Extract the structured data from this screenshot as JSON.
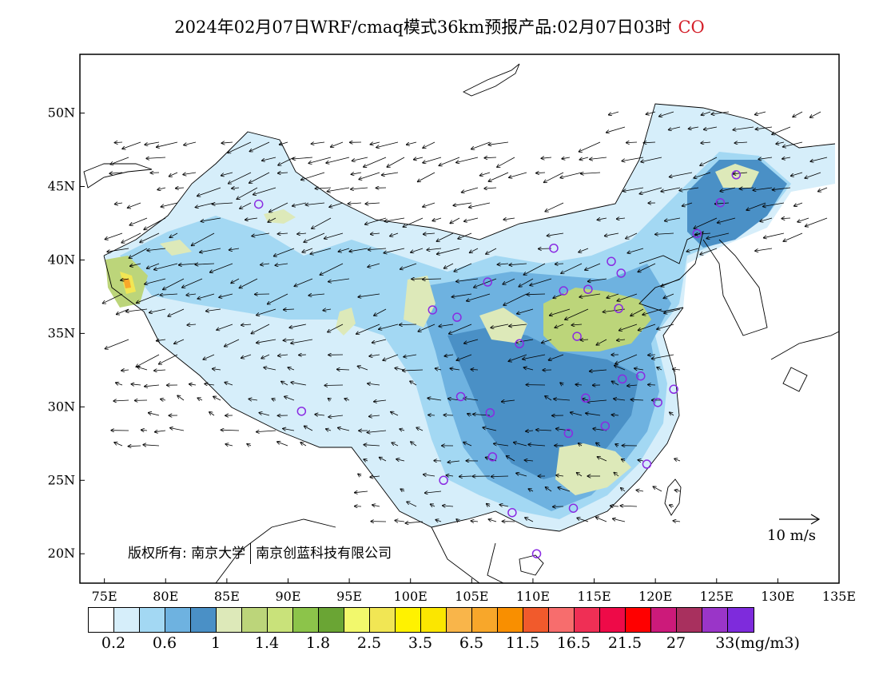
{
  "header": {
    "title": "2024年02月07日WRF/cmaq模式36km预报产品:02月07日03时",
    "species": "CO"
  },
  "map": {
    "lon_labels": [
      "75E",
      "80E",
      "85E",
      "90E",
      "95E",
      "100E",
      "105E",
      "110E",
      "115E",
      "120E",
      "125E",
      "130E",
      "135E"
    ],
    "lat_labels": [
      "20N",
      "25N",
      "30N",
      "35N",
      "40N",
      "45N",
      "50N"
    ],
    "lon_range": [
      73,
      135
    ],
    "lat_range": [
      18,
      54
    ],
    "concentration_colors": [
      "#ffffff",
      "#d6eefa",
      "#a3d8f3",
      "#6eb2e0",
      "#4a90c6",
      "#dde9b9",
      "#bcd57a",
      "#c9e27a",
      "#8cc44a",
      "#6aa534",
      "#f2f86c",
      "#f1e654",
      "#fff200",
      "#fbe600",
      "#f9b54a",
      "#f8a72a",
      "#f98f00",
      "#f15a2c",
      "#f76d6d",
      "#ef2f55",
      "#ee0a48",
      "#ff0000",
      "#cc1a7a",
      "#a8305e",
      "#9a35c8",
      "#7e2bdc"
    ],
    "station_color": "#8a2be2",
    "stations": [
      {
        "lon": 87.6,
        "lat": 43.8
      },
      {
        "lon": 91.1,
        "lat": 29.7
      },
      {
        "lon": 101.8,
        "lat": 36.6
      },
      {
        "lon": 103.8,
        "lat": 36.1
      },
      {
        "lon": 106.3,
        "lat": 38.5
      },
      {
        "lon": 111.7,
        "lat": 40.8
      },
      {
        "lon": 112.5,
        "lat": 37.9
      },
      {
        "lon": 114.5,
        "lat": 38.0
      },
      {
        "lon": 116.4,
        "lat": 39.9
      },
      {
        "lon": 117.2,
        "lat": 39.1
      },
      {
        "lon": 117.0,
        "lat": 36.7
      },
      {
        "lon": 113.6,
        "lat": 34.8
      },
      {
        "lon": 108.9,
        "lat": 34.3
      },
      {
        "lon": 104.1,
        "lat": 30.7
      },
      {
        "lon": 106.5,
        "lat": 29.6
      },
      {
        "lon": 102.7,
        "lat": 25.0
      },
      {
        "lon": 106.7,
        "lat": 26.6
      },
      {
        "lon": 108.3,
        "lat": 22.8
      },
      {
        "lon": 113.3,
        "lat": 23.1
      },
      {
        "lon": 110.3,
        "lat": 20.0
      },
      {
        "lon": 112.9,
        "lat": 28.2
      },
      {
        "lon": 114.3,
        "lat": 30.6
      },
      {
        "lon": 115.9,
        "lat": 28.7
      },
      {
        "lon": 117.3,
        "lat": 31.9
      },
      {
        "lon": 118.8,
        "lat": 32.1
      },
      {
        "lon": 120.2,
        "lat": 30.3
      },
      {
        "lon": 121.5,
        "lat": 31.2
      },
      {
        "lon": 119.3,
        "lat": 26.1
      },
      {
        "lon": 123.4,
        "lat": 41.8
      },
      {
        "lon": 125.3,
        "lat": 43.9
      },
      {
        "lon": 126.6,
        "lat": 45.8
      }
    ],
    "wind_scale_label": "10 m/s"
  },
  "colorbar": {
    "colors": [
      "#ffffff",
      "#d6eefa",
      "#a3d8f3",
      "#6eb2e0",
      "#4a90c6",
      "#dde9b9",
      "#bcd57a",
      "#c9e27a",
      "#8cc44a",
      "#6aa534",
      "#f2f86c",
      "#f1e654",
      "#fff200",
      "#fbe600",
      "#f9b54a",
      "#f8a72a",
      "#f98f00",
      "#f15a2c",
      "#f76d6d",
      "#ef2f55",
      "#ee0a48",
      "#ff0000",
      "#cc1a7a",
      "#a8305e",
      "#9a35c8",
      "#7e2bdc"
    ],
    "tick_labels": [
      "0.2",
      "0.6",
      "1",
      "1.4",
      "1.8",
      "2.5",
      "3.5",
      "6.5",
      "11.5",
      "16.5",
      "21.5",
      "27",
      "33(mg/m3)"
    ]
  },
  "footer": {
    "copyright_prefix": "版权所有: 南京大学",
    "copyright_suffix": "南京创蓝科技有限公司"
  }
}
